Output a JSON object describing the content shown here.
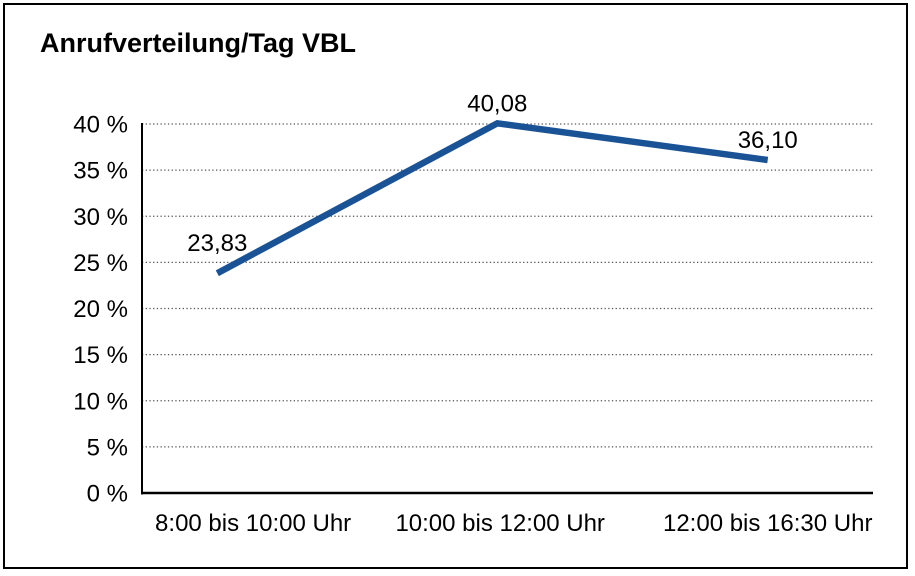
{
  "chart": {
    "background": "#FFFFFF",
    "frame_color": "#000000"
  },
  "chart_data": {
    "type": "line",
    "title": "Anrufverteilung/Tag VBL",
    "categories": [
      "8:00 bis 10:00 Uhr",
      "10:00 bis 12:00 Uhr",
      "12:00 bis 16:30 Uhr"
    ],
    "values": [
      23.83,
      40.08,
      36.1
    ],
    "point_labels": [
      "23,83",
      "40,08",
      "36,10"
    ],
    "xlabel": "",
    "ylabel": "",
    "ylim": [
      0,
      40
    ],
    "y_ticks": [
      0,
      5,
      10,
      15,
      20,
      25,
      30,
      35,
      40
    ],
    "y_tick_labels": [
      "0 %",
      "5 %",
      "10 %",
      "15 %",
      "20 %",
      "25 %",
      "30 %",
      "35 %",
      "40 %"
    ],
    "grid": "horizontal-dotted",
    "legend": "none",
    "line_width": 6.5,
    "colors": {
      "line": "#1A5296",
      "grid": "#555555",
      "axis": "#000000",
      "text": "#000000"
    }
  }
}
